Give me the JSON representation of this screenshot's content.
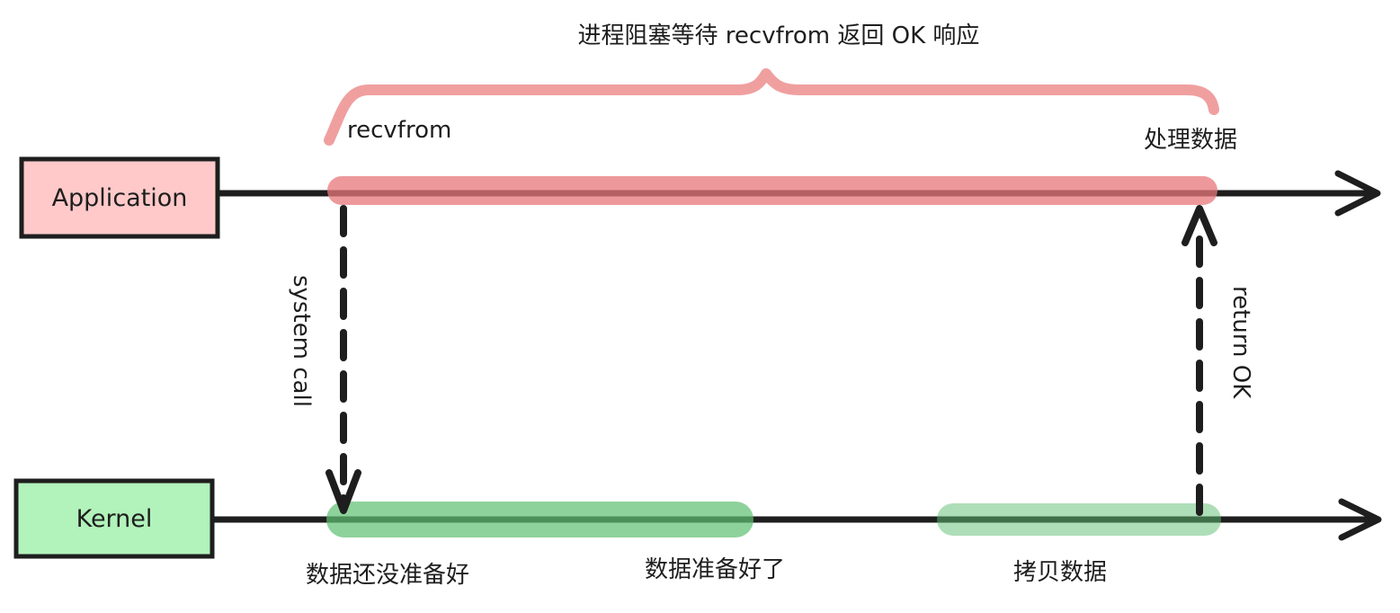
{
  "title": "进程阻塞等待 recvfrom 返回 OK 响应",
  "lanes": {
    "application": {
      "label": "Application",
      "fill": "#ffc9c9"
    },
    "kernel": {
      "label": "Kernel",
      "fill": "#b2f2bb"
    }
  },
  "labels": {
    "recvfrom": "recvfrom",
    "process_data": "处理数据",
    "system_call": "system call",
    "return_ok": "return OK",
    "data_not_ready": "数据还没准备好",
    "data_ready": "数据准备好了",
    "copy_data": "拷贝数据"
  },
  "colors": {
    "stroke": "#1e1e1e",
    "app_highlight": "#e8787c",
    "kernel_highlight": "#5fbf72",
    "brace": "#ef9a9a"
  }
}
